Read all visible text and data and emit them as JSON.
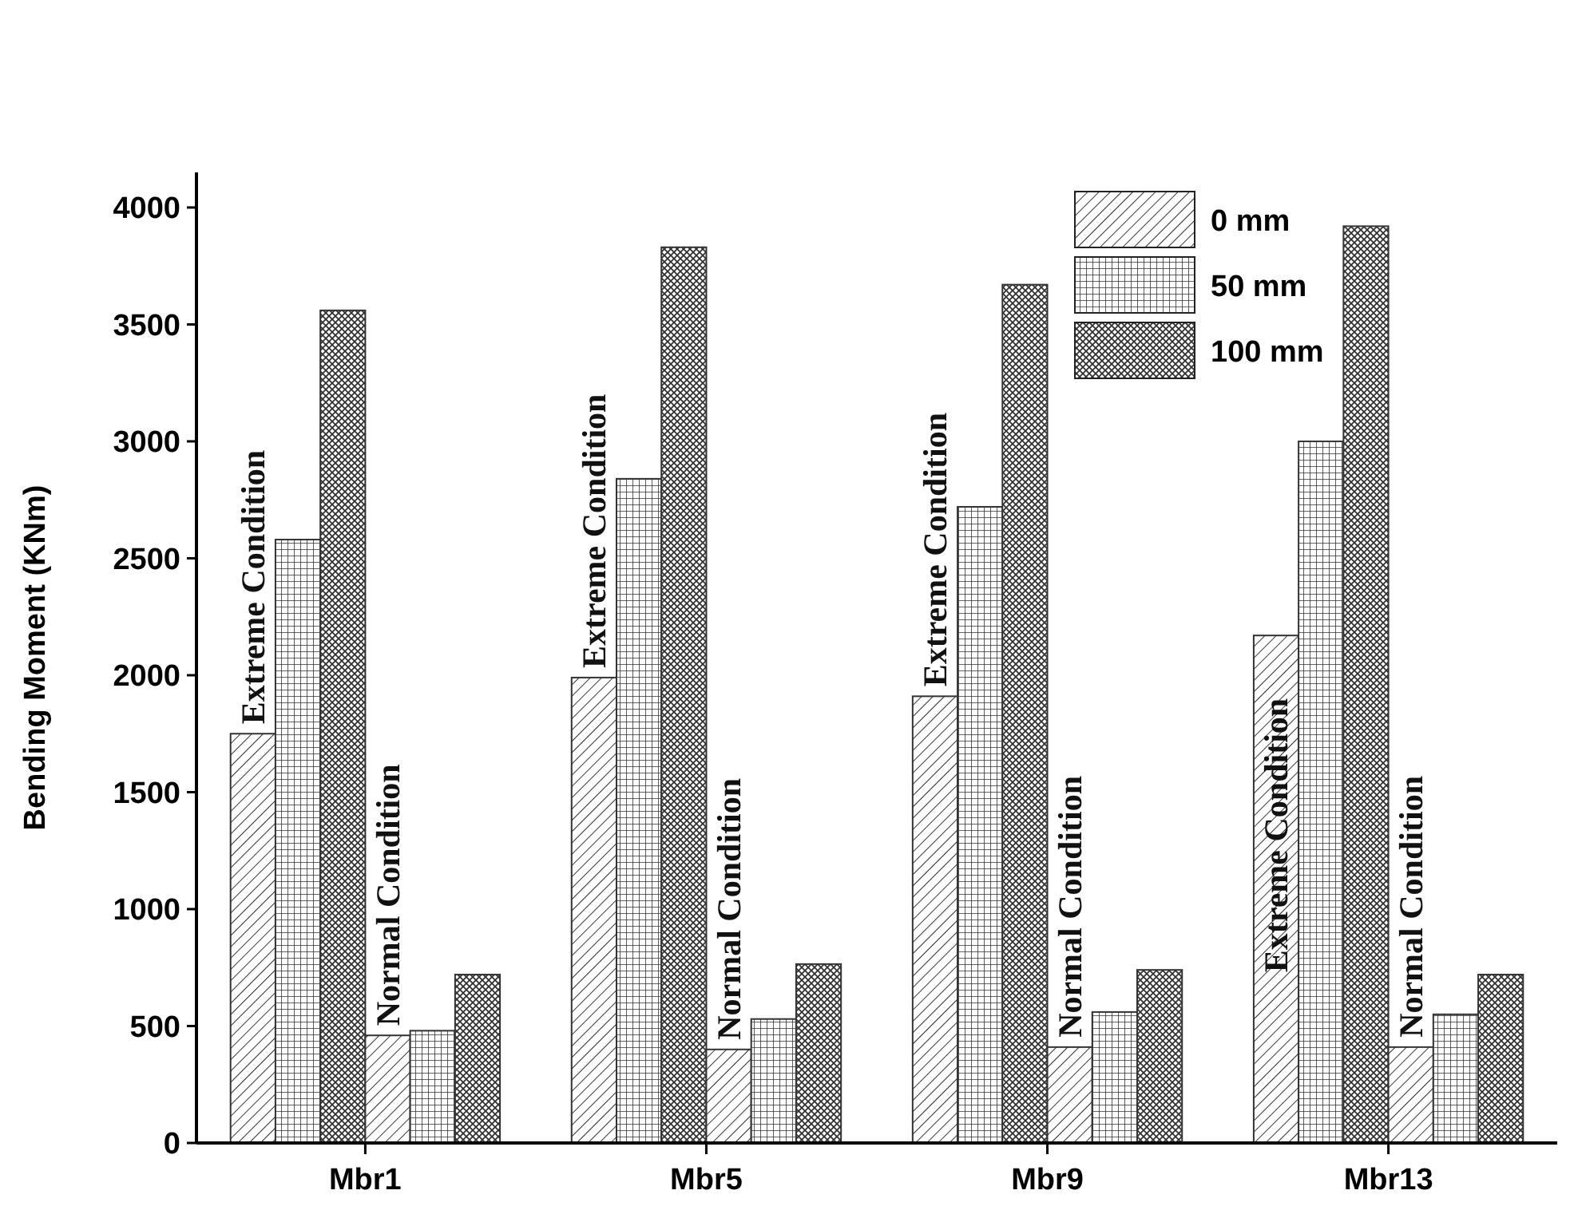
{
  "chart_data": {
    "type": "bar",
    "ylabel": "Bending Moment (KNm)",
    "categories": [
      "Mbr1",
      "Mbr5",
      "Mbr9",
      "Mbr13"
    ],
    "series": [
      {
        "name": "0 mm",
        "color": "#333333",
        "values": [
          1750,
          1990,
          1910,
          2170
        ]
      },
      {
        "name": "50 mm",
        "color": "#333333",
        "values": [
          2580,
          2840,
          2720,
          3000
        ]
      },
      {
        "name": "100 mm",
        "color": "#333333",
        "values": [
          3560,
          3830,
          3670,
          3920
        ]
      },
      {
        "color": "#333333",
        "values": [
          460,
          400,
          410,
          410
        ]
      },
      {
        "color": "#333333",
        "values": [
          480,
          530,
          560,
          550
        ]
      },
      {
        "color": "#333333",
        "values": [
          720,
          765,
          740,
          720
        ]
      }
    ],
    "annotations": [
      "Extreme Condition",
      "Normal Condition",
      "Extreme Condition",
      "Normal Condition",
      "Extreme Condition",
      "Normal Condition",
      "Extreme Condition",
      "Normal Condition"
    ],
    "ylim": [
      0,
      4150
    ],
    "yticks": [
      0,
      500,
      1000,
      1500,
      2000,
      2500,
      3000,
      3500,
      4000
    ],
    "legend": "top right",
    "grid": false
  }
}
